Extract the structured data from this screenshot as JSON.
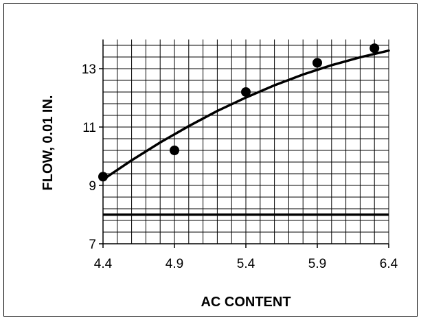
{
  "chart_data": {
    "type": "scatter",
    "title": "",
    "xlabel": "AC CONTENT",
    "ylabel": "FLOW, 0.01 IN.",
    "xlim": [
      4.4,
      6.4
    ],
    "ylim": [
      7,
      14
    ],
    "x_ticks": [
      "4.4",
      "4.9",
      "5.4",
      "5.9",
      "6.4"
    ],
    "y_ticks": [
      "7",
      "9",
      "11",
      "13"
    ],
    "grid": true,
    "legend": "none",
    "series": [
      {
        "x": [
          4.4,
          4.9,
          5.4,
          5.9,
          6.3
        ],
        "y": [
          9.3,
          10.2,
          12.2,
          13.2,
          13.7
        ]
      }
    ],
    "fit_curve": {
      "x": [
        4.4,
        4.6,
        4.8,
        5.0,
        5.2,
        5.4,
        5.6,
        5.8,
        6.0,
        6.2,
        6.4
      ],
      "y": [
        9.2,
        9.86,
        10.47,
        11.03,
        11.55,
        12.01,
        12.43,
        12.8,
        13.12,
        13.39,
        13.62
      ]
    },
    "reference_line": {
      "y": 8.0
    },
    "colors": {
      "line": "#000000",
      "marker": "#000000",
      "grid": "#000000"
    }
  }
}
